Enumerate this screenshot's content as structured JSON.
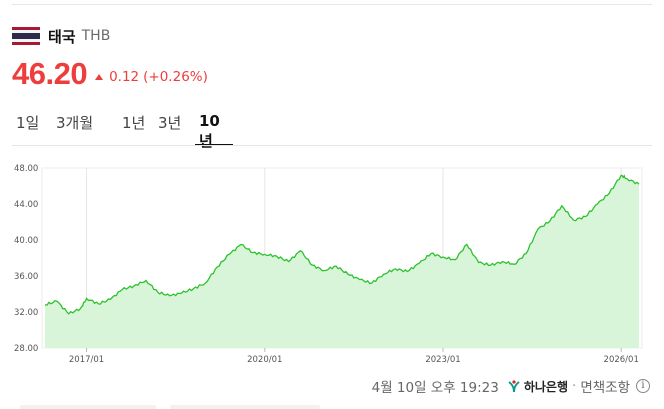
{
  "header": {
    "country": "태국",
    "currency_code": "THB",
    "flag_colors": [
      "#a51931",
      "#f4f5f8",
      "#2d2a4a",
      "#f4f5f8",
      "#a51931"
    ]
  },
  "quote": {
    "price": "46.20",
    "change": "0.12",
    "change_pct": "(+0.26%)",
    "direction": "up",
    "color": "#ee3d3d"
  },
  "tabs": [
    {
      "label": "1일",
      "active": false
    },
    {
      "label": "3개월",
      "active": false
    },
    {
      "label": "1년",
      "active": false
    },
    {
      "label": "3년",
      "active": false
    },
    {
      "label": "10년",
      "active": true
    }
  ],
  "chart_data": {
    "type": "area",
    "line_color": "#2ec12e",
    "fill_color": "#d9f5d9",
    "y_ticks": [
      "48.00",
      "44.00",
      "40.00",
      "36.00",
      "32.00",
      "28.00"
    ],
    "ylim": [
      28,
      48
    ],
    "x_ticks": [
      "2017/01",
      "2020/01",
      "2023/01",
      "2026/01"
    ],
    "grid": "vertical",
    "x": [
      2016.3,
      2016.5,
      2016.7,
      2016.9,
      2017.0,
      2017.2,
      2017.4,
      2017.6,
      2017.8,
      2018.0,
      2018.2,
      2018.4,
      2018.6,
      2018.8,
      2019.0,
      2019.2,
      2019.4,
      2019.6,
      2019.8,
      2020.0,
      2020.2,
      2020.4,
      2020.6,
      2020.8,
      2021.0,
      2021.2,
      2021.4,
      2021.6,
      2021.8,
      2022.0,
      2022.2,
      2022.4,
      2022.6,
      2022.8,
      2023.0,
      2023.2,
      2023.4,
      2023.6,
      2023.8,
      2024.0,
      2024.2,
      2024.4,
      2024.6,
      2024.8,
      2025.0,
      2025.2,
      2025.4,
      2025.6,
      2025.8,
      2026.0,
      2026.1,
      2026.3
    ],
    "values": [
      32.8,
      33.2,
      31.8,
      32.4,
      33.5,
      32.9,
      33.4,
      34.5,
      34.9,
      35.5,
      34.2,
      33.8,
      34.1,
      34.6,
      35.2,
      37.0,
      38.4,
      39.5,
      38.6,
      38.4,
      38.2,
      37.6,
      38.8,
      37.2,
      36.6,
      37.1,
      36.2,
      35.6,
      35.2,
      36.2,
      36.8,
      36.5,
      37.4,
      38.5,
      38.1,
      37.8,
      39.5,
      37.5,
      37.2,
      37.6,
      37.3,
      38.5,
      41.2,
      42.1,
      43.8,
      42.2,
      42.6,
      44.0,
      45.2,
      47.2,
      46.8,
      46.2
    ]
  },
  "footer": {
    "timestamp": "4월 10일 오후 19:23",
    "provider": "하나은행",
    "disclaimer": "면책조항",
    "info_icon": "info-circle-icon",
    "provider_icon": "hana-bank-logo-icon"
  }
}
